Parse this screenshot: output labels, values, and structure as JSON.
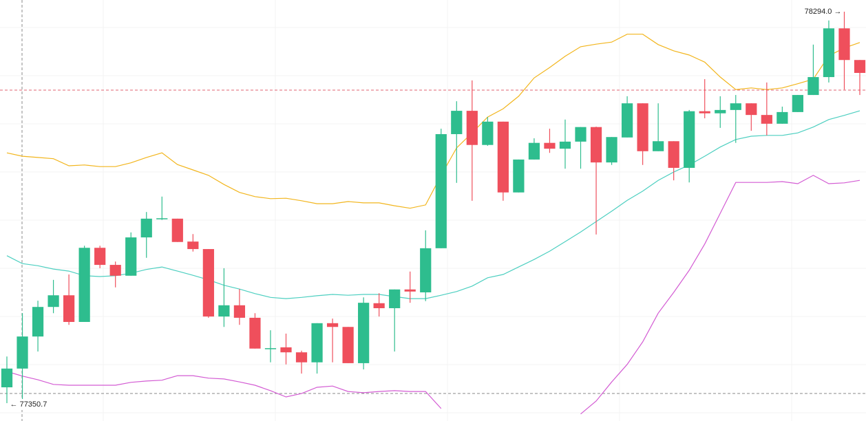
{
  "chart_data": {
    "type": "candlestick",
    "up_color": "#2ebd8e",
    "down_color": "#ef4f5c",
    "ylim": [
      77311.1,
      78322.1
    ],
    "open": [
      77392,
      77437,
      77514,
      77585,
      77613,
      77549,
      77727,
      77686,
      77660,
      77752,
      77797,
      77797,
      77742,
      77724,
      77562,
      77589,
      77559,
      77485,
      77488,
      77476,
      77452,
      77546,
      77537,
      77450,
      77594,
      77582,
      77627,
      77620,
      77726,
      78000,
      78056,
      77974,
      78030,
      77860,
      77939,
      77979,
      77965,
      77982,
      78017,
      77932,
      77992,
      78074,
      77959,
      77983,
      77919,
      78055,
      78050,
      78058,
      78074,
      78046,
      78025,
      78053,
      78094,
      78137,
      78254,
      78178
    ],
    "high": [
      77466,
      77570,
      77600,
      77650,
      77663,
      77732,
      77732,
      77694,
      77764,
      77813,
      77850,
      77797,
      77760,
      77724,
      77678,
      77628,
      77570,
      77529,
      77521,
      77480,
      77546,
      77557,
      77537,
      77608,
      77618,
      77627,
      77670,
      77769,
      78013,
      78079,
      78129,
      78041,
      78030,
      77939,
      77990,
      78013,
      78035,
      78017,
      78018,
      77993,
      78091,
      78074,
      78074,
      77983,
      78058,
      78132,
      78091,
      78094,
      78074,
      78124,
      78066,
      78094,
      78215,
      78273,
      78294.0,
      78178
    ],
    "low": [
      77354,
      77350.7,
      77478,
      77570,
      77542,
      77549,
      77678,
      77632,
      77660,
      77703,
      77794,
      77741,
      77718,
      77559,
      77537,
      77542,
      77485,
      77452,
      77447,
      77425,
      77425,
      77452,
      77450,
      77435,
      77562,
      77478,
      77595,
      77599,
      77726,
      77883,
      77840,
      77972,
      77840,
      77860,
      77939,
      77955,
      77917,
      77917,
      77759,
      77926,
      77992,
      77926,
      77959,
      77889,
      77884,
      78038,
      78015,
      77979,
      78008,
      77997,
      78025,
      78053,
      78094,
      78124,
      78107,
      78094
    ],
    "close": [
      77437,
      77514,
      77585,
      77613,
      77549,
      77727,
      77686,
      77660,
      77752,
      77797,
      77798,
      77741,
      77724,
      77562,
      77589,
      77559,
      77485,
      77486,
      77476,
      77452,
      77546,
      77537,
      77450,
      77595,
      77582,
      77627,
      77622,
      77726,
      78000,
      78056,
      77974,
      78030,
      77860,
      77939,
      77979,
      77965,
      77982,
      78017,
      77932,
      77993,
      78074,
      77959,
      77983,
      77919,
      78055,
      78050,
      78058,
      78074,
      78046,
      78025,
      78053,
      78094,
      78137,
      78254,
      78178,
      78147
    ],
    "lines": [
      {
        "color": "#f2b51c",
        "values": [
          77955,
          77947,
          77944,
          77941,
          77924,
          77926,
          77922,
          77922,
          77931,
          77944,
          77955,
          77927,
          77914,
          77901,
          77879,
          77860,
          77850,
          77845,
          77846,
          77840,
          77833,
          77833,
          77838,
          77835,
          77835,
          77828,
          77822,
          77830,
          77901,
          77967,
          78003,
          78041,
          78061,
          78091,
          78135,
          78160,
          78187,
          78210,
          78216,
          78221,
          78240,
          78240,
          78215,
          78200,
          78190,
          78173,
          78137,
          78107,
          78111,
          78107,
          78111,
          78121,
          78132,
          78188,
          78207,
          78220
        ]
      },
      {
        "color": "#4ccfc0",
        "values": [
          77708,
          77689,
          77684,
          77676,
          77671,
          77660,
          77658,
          77660,
          77666,
          77675,
          77681,
          77671,
          77661,
          77650,
          77637,
          77628,
          77617,
          77608,
          77605,
          77608,
          77612,
          77615,
          77613,
          77615,
          77615,
          77610,
          77605,
          77605,
          77613,
          77622,
          77635,
          77655,
          77663,
          77681,
          77699,
          77719,
          77742,
          77765,
          77790,
          77815,
          77841,
          77863,
          77889,
          77909,
          77926,
          77947,
          77969,
          77987,
          77995,
          77997,
          77997,
          78003,
          78017,
          78035,
          78045,
          78056
        ]
      },
      {
        "color": "#d35bd3",
        "values": [
          77430,
          77419,
          77410,
          77399,
          77397,
          77397,
          77397,
          77397,
          77404,
          77407,
          77409,
          77420,
          77420,
          77414,
          77412,
          77405,
          77397,
          77384,
          77369,
          77377,
          77392,
          77395,
          77382,
          77379,
          77382,
          77384,
          77382,
          77382,
          77341,
          null,
          null,
          null,
          null,
          null,
          null,
          null,
          null,
          77328,
          77359,
          77405,
          77447,
          77501,
          77570,
          77620,
          77673,
          77736,
          77810,
          77884,
          77884,
          77884,
          77886,
          77881,
          77901,
          77881,
          77883,
          77889
        ]
      }
    ],
    "high_label": "78294.0 →",
    "low_label": "← 77350.7"
  }
}
